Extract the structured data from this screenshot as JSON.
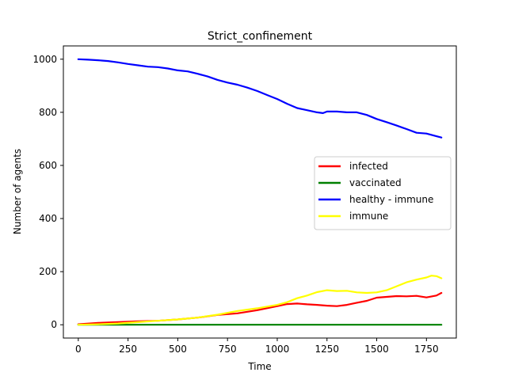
{
  "chart_data": {
    "type": "line",
    "title": "Strict_confinement",
    "xlabel": "Time",
    "ylabel": "Number of agents",
    "xlim": [
      -75,
      1900
    ],
    "ylim": [
      -50,
      1050
    ],
    "xticks": [
      0,
      250,
      500,
      750,
      1000,
      1250,
      1500,
      1750
    ],
    "yticks": [
      0,
      200,
      400,
      600,
      800,
      1000
    ],
    "grid": false,
    "legend_position": "center-right",
    "series": [
      {
        "name": "infected",
        "color": "#ff0000",
        "points": [
          [
            0,
            2
          ],
          [
            100,
            7
          ],
          [
            200,
            10
          ],
          [
            300,
            13
          ],
          [
            400,
            15
          ],
          [
            500,
            20
          ],
          [
            600,
            27
          ],
          [
            700,
            37
          ],
          [
            800,
            43
          ],
          [
            900,
            55
          ],
          [
            1000,
            70
          ],
          [
            1050,
            78
          ],
          [
            1100,
            80
          ],
          [
            1150,
            77
          ],
          [
            1200,
            75
          ],
          [
            1250,
            72
          ],
          [
            1300,
            70
          ],
          [
            1350,
            75
          ],
          [
            1400,
            83
          ],
          [
            1450,
            90
          ],
          [
            1500,
            102
          ],
          [
            1550,
            105
          ],
          [
            1600,
            108
          ],
          [
            1650,
            107
          ],
          [
            1700,
            109
          ],
          [
            1750,
            103
          ],
          [
            1800,
            110
          ],
          [
            1825,
            120
          ]
        ]
      },
      {
        "name": "vaccinated",
        "color": "#008000",
        "points": [
          [
            0,
            0
          ],
          [
            1825,
            0
          ]
        ]
      },
      {
        "name": "healthy - immune",
        "color": "#0000ff",
        "points": [
          [
            0,
            1000
          ],
          [
            50,
            998
          ],
          [
            100,
            996
          ],
          [
            150,
            993
          ],
          [
            200,
            988
          ],
          [
            250,
            982
          ],
          [
            300,
            977
          ],
          [
            350,
            972
          ],
          [
            400,
            970
          ],
          [
            450,
            965
          ],
          [
            500,
            958
          ],
          [
            550,
            954
          ],
          [
            600,
            945
          ],
          [
            650,
            935
          ],
          [
            700,
            922
          ],
          [
            750,
            912
          ],
          [
            800,
            904
          ],
          [
            850,
            893
          ],
          [
            900,
            880
          ],
          [
            950,
            865
          ],
          [
            1000,
            850
          ],
          [
            1050,
            832
          ],
          [
            1100,
            816
          ],
          [
            1150,
            808
          ],
          [
            1200,
            800
          ],
          [
            1230,
            797
          ],
          [
            1250,
            803
          ],
          [
            1300,
            803
          ],
          [
            1350,
            800
          ],
          [
            1400,
            800
          ],
          [
            1450,
            790
          ],
          [
            1500,
            775
          ],
          [
            1550,
            763
          ],
          [
            1600,
            750
          ],
          [
            1650,
            737
          ],
          [
            1700,
            723
          ],
          [
            1750,
            720
          ],
          [
            1800,
            710
          ],
          [
            1825,
            705
          ]
        ]
      },
      {
        "name": "immune",
        "color": "#ffff00",
        "points": [
          [
            0,
            0
          ],
          [
            100,
            2
          ],
          [
            200,
            5
          ],
          [
            300,
            10
          ],
          [
            400,
            15
          ],
          [
            500,
            20
          ],
          [
            600,
            27
          ],
          [
            700,
            38
          ],
          [
            800,
            52
          ],
          [
            900,
            62
          ],
          [
            1000,
            75
          ],
          [
            1050,
            85
          ],
          [
            1100,
            100
          ],
          [
            1150,
            110
          ],
          [
            1200,
            123
          ],
          [
            1250,
            130
          ],
          [
            1300,
            127
          ],
          [
            1350,
            128
          ],
          [
            1400,
            122
          ],
          [
            1450,
            120
          ],
          [
            1500,
            122
          ],
          [
            1550,
            130
          ],
          [
            1600,
            145
          ],
          [
            1650,
            160
          ],
          [
            1700,
            170
          ],
          [
            1750,
            178
          ],
          [
            1775,
            185
          ],
          [
            1800,
            183
          ],
          [
            1825,
            175
          ]
        ]
      }
    ]
  }
}
